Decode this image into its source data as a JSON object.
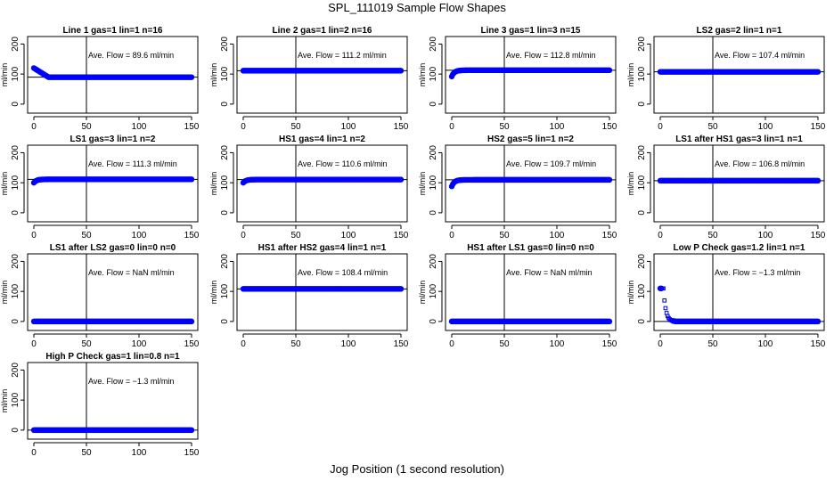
{
  "figure": {
    "title": "SPL_111019  Sample Flow Shapes",
    "xlabel": "Jog Position (1 second resolution)"
  },
  "colors": {
    "points": "#0000ff",
    "lines": "#000000",
    "background": "#ffffff"
  },
  "chart_data": [
    {
      "type": "scatter",
      "title": "Line 1 gas=1 lin=1 n=16",
      "annotation": "Ave. Flow =  89.6  ml/min",
      "ylabel": "ml/min",
      "xlim": [
        0,
        150
      ],
      "ylim": [
        -30,
        225
      ],
      "xticks": [
        "0",
        "50",
        "100",
        "150"
      ],
      "yticks": [
        "0",
        "100",
        "200"
      ],
      "hline": 89.6,
      "vline": 50,
      "shape": "settle_down",
      "start": 120,
      "steady": 89.6
    },
    {
      "type": "scatter",
      "title": "Line 2 gas=1 lin=2 n=16",
      "annotation": "Ave. Flow = 111.2  ml/min",
      "ylabel": "ml/min",
      "xlim": [
        0,
        150
      ],
      "ylim": [
        -30,
        225
      ],
      "xticks": [
        "0",
        "50",
        "100",
        "150"
      ],
      "yticks": [
        "0",
        "100",
        "200"
      ],
      "hline": 111.2,
      "vline": 50,
      "shape": "flat",
      "start": 112,
      "steady": 111.2
    },
    {
      "type": "scatter",
      "title": "Line 3 gas=1 lin=3 n=15",
      "annotation": "Ave. Flow = 112.8  ml/min",
      "ylabel": "ml/min",
      "xlim": [
        0,
        150
      ],
      "ylim": [
        -30,
        225
      ],
      "xticks": [
        "0",
        "50",
        "100",
        "150"
      ],
      "yticks": [
        "0",
        "100",
        "200"
      ],
      "hline": 112.8,
      "vline": 50,
      "shape": "rise",
      "start": 92,
      "steady": 112.8
    },
    {
      "type": "scatter",
      "title": "LS2 gas=2 lin=1 n=1",
      "annotation": "Ave. Flow = 107.4  ml/min",
      "ylabel": "ml/min",
      "xlim": [
        0,
        150
      ],
      "ylim": [
        -30,
        225
      ],
      "xticks": [
        "0",
        "50",
        "100",
        "150"
      ],
      "yticks": [
        "0",
        "100",
        "200"
      ],
      "hline": 107.4,
      "vline": 50,
      "shape": "flat",
      "start": 108,
      "steady": 107.4
    },
    {
      "type": "scatter",
      "title": "LS1 gas=3 lin=1 n=2",
      "annotation": "Ave. Flow = 111.3  ml/min",
      "ylabel": "ml/min",
      "xlim": [
        0,
        150
      ],
      "ylim": [
        -30,
        225
      ],
      "xticks": [
        "0",
        "50",
        "100",
        "150"
      ],
      "yticks": [
        "0",
        "100",
        "200"
      ],
      "hline": 111.3,
      "vline": 50,
      "shape": "rise",
      "start": 100,
      "steady": 111.3
    },
    {
      "type": "scatter",
      "title": "HS1 gas=4 lin=1 n=2",
      "annotation": "Ave. Flow = 110.6  ml/min",
      "ylabel": "ml/min",
      "xlim": [
        0,
        150
      ],
      "ylim": [
        -30,
        225
      ],
      "xticks": [
        "0",
        "50",
        "100",
        "150"
      ],
      "yticks": [
        "0",
        "100",
        "200"
      ],
      "hline": 110.6,
      "vline": 50,
      "shape": "rise",
      "start": 100,
      "steady": 110.6
    },
    {
      "type": "scatter",
      "title": "HS2 gas=5 lin=1 n=2",
      "annotation": "Ave. Flow = 109.7  ml/min",
      "ylabel": "ml/min",
      "xlim": [
        0,
        150
      ],
      "ylim": [
        -30,
        225
      ],
      "xticks": [
        "0",
        "50",
        "100",
        "150"
      ],
      "yticks": [
        "0",
        "100",
        "200"
      ],
      "hline": 109.7,
      "vline": 50,
      "shape": "rise",
      "start": 88,
      "steady": 109.7
    },
    {
      "type": "scatter",
      "title": "LS1 after HS1 gas=3 lin=1 n=1",
      "annotation": "Ave. Flow = 106.8  ml/min",
      "ylabel": "ml/min",
      "xlim": [
        0,
        150
      ],
      "ylim": [
        -30,
        225
      ],
      "xticks": [
        "0",
        "50",
        "100",
        "150"
      ],
      "yticks": [
        "0",
        "100",
        "200"
      ],
      "hline": 106.8,
      "vline": 50,
      "shape": "flat",
      "start": 108,
      "steady": 106.8
    },
    {
      "type": "scatter",
      "title": "LS1 after LS2 gas=0 lin=0 n=0",
      "annotation": "Ave. Flow =  NaN  ml/min",
      "ylabel": "ml/min",
      "xlim": [
        0,
        150
      ],
      "ylim": [
        -30,
        225
      ],
      "xticks": [
        "0",
        "50",
        "100",
        "150"
      ],
      "yticks": [
        "0",
        "100",
        "200"
      ],
      "hline": null,
      "vline": 50,
      "shape": "flat",
      "start": 0,
      "steady": 0
    },
    {
      "type": "scatter",
      "title": "HS1 after HS2 gas=4 lin=1 n=1",
      "annotation": "Ave. Flow = 108.4  ml/min",
      "ylabel": "ml/min",
      "xlim": [
        0,
        150
      ],
      "ylim": [
        -30,
        225
      ],
      "xticks": [
        "0",
        "50",
        "100",
        "150"
      ],
      "yticks": [
        "0",
        "100",
        "200"
      ],
      "hline": 108.4,
      "vline": 50,
      "shape": "flat",
      "start": 108,
      "steady": 108.4
    },
    {
      "type": "scatter",
      "title": "HS1 after LS1 gas=0 lin=0 n=0",
      "annotation": "Ave. Flow =  NaN  ml/min",
      "ylabel": "ml/min",
      "xlim": [
        0,
        150
      ],
      "ylim": [
        -30,
        225
      ],
      "xticks": [
        "0",
        "50",
        "100",
        "150"
      ],
      "yticks": [
        "0",
        "100",
        "200"
      ],
      "hline": null,
      "vline": 50,
      "shape": "flat",
      "start": 0,
      "steady": 0
    },
    {
      "type": "scatter",
      "title": "Low P Check gas=1.2 lin=1 n=1",
      "annotation": "Ave. Flow = −1.3  ml/min",
      "ylabel": "ml/min",
      "xlim": [
        0,
        150
      ],
      "ylim": [
        -30,
        225
      ],
      "xticks": [
        "0",
        "50",
        "100",
        "150"
      ],
      "yticks": [
        "0",
        "100",
        "200"
      ],
      "hline": 0,
      "vline": 50,
      "shape": "decay",
      "start": 110,
      "steady": 0
    },
    {
      "type": "scatter",
      "title": "High P Check gas=1 lin=0.8 n=1",
      "annotation": "Ave. Flow = −1.3  ml/min",
      "ylabel": "ml/min",
      "xlim": [
        0,
        150
      ],
      "ylim": [
        -30,
        225
      ],
      "xticks": [
        "0",
        "50",
        "100",
        "150"
      ],
      "yticks": [
        "0",
        "100",
        "200"
      ],
      "hline": 0,
      "vline": 50,
      "shape": "flat",
      "start": 0,
      "steady": 0
    }
  ]
}
